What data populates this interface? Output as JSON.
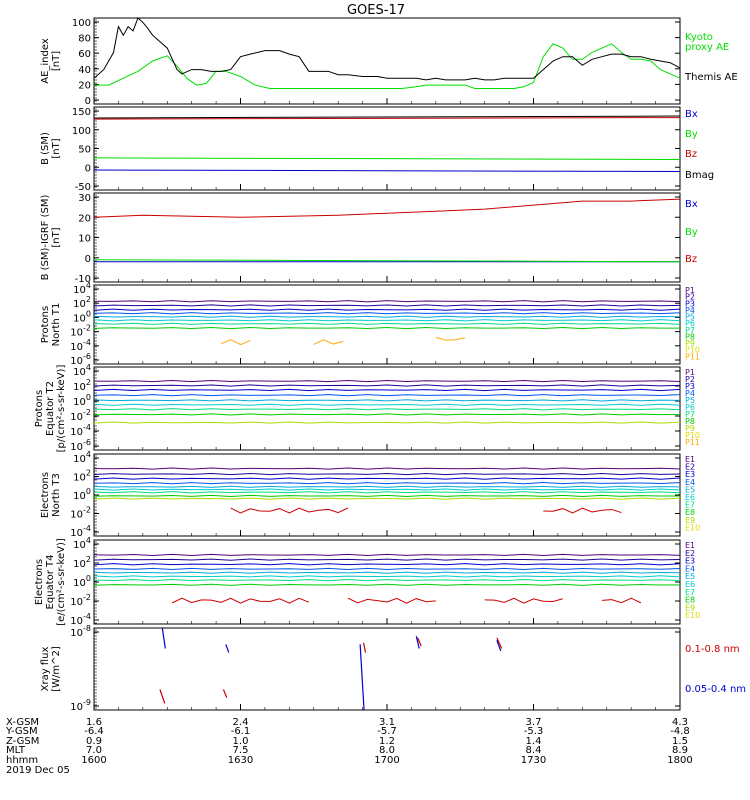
{
  "title": "GOES-17",
  "ephemeris": {
    "labels": [
      "X-GSM",
      "Y-GSM",
      "Z-GSM",
      "MLT",
      "hhmm",
      "2019 Dec 05"
    ],
    "columns": [
      [
        "1.6",
        "-6.4",
        "0.9",
        "7.0",
        "1600"
      ],
      [
        "2.4",
        "-6.1",
        "1.0",
        "7.5",
        "1630"
      ],
      [
        "3.1",
        "-5.7",
        "1.2",
        "8.0",
        "1700"
      ],
      [
        "3.7",
        "-5.3",
        "1.4",
        "8.4",
        "1730"
      ],
      [
        "4.3",
        "-4.8",
        "1.5",
        "8.9",
        "1800"
      ]
    ]
  },
  "colors": {
    "green": "#00dd00",
    "black": "#000000",
    "red": "#cc0000",
    "blue": "#0000cc",
    "channels": [
      "#550077",
      "#220099",
      "#0000cc",
      "#0055ee",
      "#00aadd",
      "#00cccc",
      "#00dd88",
      "#00cc00",
      "#aadd00",
      "#dddd00",
      "#ffaa00",
      "#cc0000"
    ]
  },
  "chart_data": [
    {
      "id": "ae",
      "type": "line",
      "ylabel": [
        "AE_index",
        "[nT]"
      ],
      "yticks": [
        "100",
        "80",
        "60",
        "40",
        "20",
        "0"
      ],
      "ylim": [
        0,
        100
      ],
      "legend": [
        "Kyoto",
        "proxy AE",
        "Themis AE"
      ],
      "series": [
        {
          "name": "Kyoto proxy AE",
          "color": "green",
          "x": [
            0,
            3,
            6,
            9,
            12,
            15,
            17,
            19,
            21,
            23,
            25,
            27,
            30,
            33,
            36,
            40,
            45,
            50,
            55,
            60,
            63,
            66,
            68,
            70,
            72,
            74,
            76,
            78,
            80,
            82,
            84,
            86,
            88,
            90,
            92,
            94,
            96,
            98,
            100,
            102,
            104,
            106,
            108,
            110,
            112,
            114,
            116,
            118,
            120
          ],
          "y": [
            22,
            22,
            30,
            38,
            50,
            56,
            44,
            30,
            22,
            24,
            38,
            38,
            32,
            22,
            18,
            18,
            18,
            18,
            18,
            18,
            18,
            20,
            22,
            22,
            22,
            22,
            22,
            18,
            18,
            18,
            18,
            18,
            20,
            25,
            55,
            70,
            65,
            52,
            52,
            60,
            65,
            70,
            60,
            52,
            52,
            50,
            40,
            35,
            30
          ]
        },
        {
          "name": "Themis AE",
          "color": "black",
          "x": [
            0,
            2,
            4,
            5,
            6,
            7,
            8,
            9,
            10,
            11,
            12,
            13,
            15,
            17,
            18,
            20,
            22,
            24,
            26,
            28,
            30,
            32,
            35,
            38,
            40,
            42,
            44,
            46,
            48,
            50,
            52,
            55,
            58,
            60,
            62,
            64,
            66,
            68,
            70,
            72,
            74,
            76,
            78,
            80,
            82,
            84,
            86,
            88,
            90,
            92,
            94,
            96,
            98,
            100,
            102,
            104,
            106,
            108,
            110,
            112,
            114,
            116,
            118,
            120
          ],
          "y": [
            30,
            40,
            60,
            90,
            80,
            90,
            85,
            100,
            95,
            88,
            80,
            75,
            65,
            40,
            35,
            40,
            40,
            38,
            38,
            40,
            55,
            58,
            62,
            62,
            58,
            55,
            38,
            38,
            38,
            34,
            34,
            32,
            32,
            30,
            30,
            30,
            30,
            28,
            30,
            28,
            28,
            28,
            30,
            28,
            28,
            30,
            30,
            30,
            30,
            40,
            50,
            55,
            55,
            45,
            52,
            55,
            58,
            58,
            55,
            55,
            52,
            50,
            48,
            42
          ]
        }
      ]
    },
    {
      "id": "bsm",
      "type": "line",
      "ylabel": [
        "B (SM)",
        "[nT]"
      ],
      "yticks": [
        "150",
        "100",
        "50",
        "0",
        "-50"
      ],
      "ylim": [
        -65,
        155
      ],
      "legend": [
        "Bx",
        "By",
        "Bz",
        "Bmag"
      ],
      "series": [
        {
          "name": "Bx",
          "color": "blue",
          "x": [
            0,
            120
          ],
          "y": [
            -12,
            -16
          ]
        },
        {
          "name": "By",
          "color": "green",
          "x": [
            0,
            120
          ],
          "y": [
            20,
            16
          ]
        },
        {
          "name": "Bz",
          "color": "red",
          "x": [
            0,
            120
          ],
          "y": [
            123,
            127
          ]
        },
        {
          "name": "Bmag",
          "color": "black",
          "x": [
            0,
            120
          ],
          "y": [
            126,
            131
          ]
        }
      ]
    },
    {
      "id": "bdiff",
      "type": "line",
      "ylabel": [
        "B (SM)-IGRF (SM)",
        "[nT]"
      ],
      "yticks": [
        "30",
        "20",
        "10",
        "0",
        "-10"
      ],
      "ylim": [
        -12,
        32
      ],
      "legend": [
        "Bx",
        "By",
        "Bz"
      ],
      "series": [
        {
          "name": "Bx",
          "color": "blue",
          "x": [
            0,
            120
          ],
          "y": [
            -2,
            -2
          ]
        },
        {
          "name": "By",
          "color": "green",
          "x": [
            0,
            120
          ],
          "y": [
            -1,
            -2
          ]
        },
        {
          "name": "Bz",
          "color": "red",
          "x": [
            0,
            10,
            20,
            30,
            40,
            50,
            60,
            70,
            80,
            90,
            100,
            110,
            120
          ],
          "y": [
            20,
            21,
            20.5,
            20,
            20.5,
            21,
            22,
            23,
            24,
            26,
            28,
            28,
            29
          ]
        }
      ]
    },
    {
      "id": "pn",
      "type": "line",
      "scale": "log",
      "ylabel": [
        "Protons",
        "North T1"
      ],
      "yticks": [
        "10^4",
        "10^2",
        "10^0",
        "10^-2",
        "10^-4",
        "10^-6"
      ],
      "ylim_log": [
        -6.7,
        4.5
      ],
      "legend": [
        "P1",
        "P2",
        "P3",
        "P4",
        "P5",
        "P6",
        "P7",
        "P8",
        "P9",
        "P10",
        "P11"
      ],
      "channel_levels": [
        2.2,
        1.6,
        1.0,
        0.5,
        0.0,
        -0.5,
        -1.0,
        -1.6
      ],
      "gap_channels": [
        {
          "level": -3.6,
          "segments": [
            [
              26,
              33
            ],
            [
              45,
              52
            ]
          ]
        },
        {
          "level": -3.2,
          "segments": [
            [
              70,
              76
            ]
          ]
        }
      ]
    },
    {
      "id": "pe",
      "type": "line",
      "scale": "log",
      "ylabel": [
        "Protons",
        "Equator T2",
        "[p/(cm²-s-sr-keV)]"
      ],
      "yticks": [
        "10^4",
        "10^2",
        "10^0",
        "10^-2",
        "10^-4",
        "10^-6"
      ],
      "ylim_log": [
        -6.7,
        4.5
      ],
      "legend": [
        "P1",
        "P2",
        "P3",
        "P4",
        "P5",
        "P6",
        "P7",
        "P8",
        "P9",
        "P10",
        "P11"
      ],
      "channel_levels": [
        2.6,
        2.0,
        1.4,
        0.7,
        0.0,
        -0.6,
        -1.2,
        -1.9,
        -3.0
      ],
      "gap_channels": []
    },
    {
      "id": "en",
      "type": "line",
      "scale": "log",
      "ylabel": [
        "Electrons",
        "North T3"
      ],
      "yticks": [
        "10^4",
        "10^2",
        "10^0",
        "10^-2",
        "10^-4"
      ],
      "ylim_log": [
        -4.5,
        4.5
      ],
      "legend": [
        "E1",
        "E2",
        "E3",
        "E4",
        "E5",
        "E6",
        "E7",
        "E8",
        "E9",
        "E10"
      ],
      "channel_levels": [
        2.9,
        2.3,
        1.8,
        1.3,
        0.9,
        0.6,
        0.3,
        -0.1,
        -0.4
      ],
      "gap_channels": [
        {
          "level": -1.7,
          "segments": [
            [
              28,
              53
            ],
            [
              92,
              108
            ]
          ]
        }
      ]
    },
    {
      "id": "ee",
      "type": "line",
      "scale": "log",
      "ylabel": [
        "Electrons",
        "Equator T4",
        "[e/(cm²-s-sr-keV)]"
      ],
      "yticks": [
        "10^4",
        "10^2",
        "10^0",
        "10^-2",
        "10^-4"
      ],
      "ylim_log": [
        -4.5,
        4.5
      ],
      "legend": [
        "E1",
        "E2",
        "E3",
        "E4",
        "E5",
        "E6",
        "E7",
        "E8",
        "E9",
        "E10"
      ],
      "channel_levels": [
        2.9,
        2.4,
        1.9,
        1.4,
        1.0,
        0.6,
        0.2,
        -0.3
      ],
      "gap_channels": [
        {
          "level": -2.0,
          "segments": [
            [
              16,
              45
            ],
            [
              52,
              70
            ],
            [
              80,
              97
            ],
            [
              104,
              113
            ]
          ]
        }
      ]
    },
    {
      "id": "xray",
      "type": "line",
      "scale": "log",
      "ylabel": [
        "Xray flux",
        "[W/m^2]"
      ],
      "yticks": [
        "10^-8",
        "10^-9"
      ],
      "ylim_log": [
        -9,
        -8
      ],
      "legend": [
        "0.1-0.8 nm",
        "0.05-0.4 nm"
      ],
      "series": [
        {
          "name": "0.1-0.8 nm",
          "color": "red",
          "segments": [
            [
              [
                13.5,
                -8.75
              ],
              [
                14.5,
                -8.92
              ]
            ],
            [
              [
                26.5,
                -8.75
              ],
              [
                27.2,
                -8.85
              ]
            ],
            [
              [
                55.2,
                -8.18
              ],
              [
                55.6,
                -8.3
              ]
            ],
            [
              [
                66.3,
                -8.12
              ],
              [
                67.0,
                -8.22
              ]
            ],
            [
              [
                82.5,
                -8.12
              ],
              [
                83.5,
                -8.25
              ]
            ]
          ]
        },
        {
          "name": "0.05-0.4 nm",
          "color": "blue",
          "segments": [
            [
              [
                14.0,
                -8.0
              ],
              [
                14.6,
                -8.25
              ]
            ],
            [
              [
                27.0,
                -8.2
              ],
              [
                27.6,
                -8.3
              ]
            ],
            [
              [
                54.5,
                -8.2
              ],
              [
                55.3,
                -9.0
              ]
            ],
            [
              [
                66.0,
                -8.1
              ],
              [
                66.6,
                -8.25
              ]
            ],
            [
              [
                82.5,
                -8.15
              ],
              [
                83.3,
                -8.28
              ]
            ]
          ]
        }
      ]
    }
  ]
}
